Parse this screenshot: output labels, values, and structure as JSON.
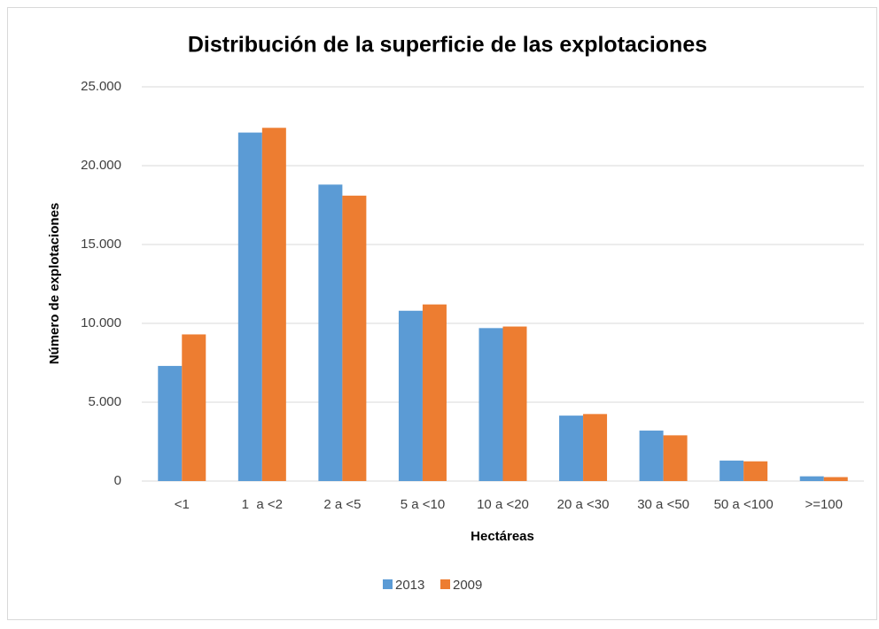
{
  "chart_data": {
    "type": "bar",
    "title": "Distribución de la superficie de las explotaciones",
    "x_label": "Hectáreas",
    "y_label": "Número de explotaciones",
    "categories": [
      "<1",
      "1  a <2",
      "2 a <5",
      "5 a <10",
      "10 a <20",
      "20 a <30",
      "30 a <50",
      "50 a <100",
      ">=100"
    ],
    "series": [
      {
        "name": "2013",
        "color": "#5b9bd5",
        "values": [
          7300,
          22100,
          18800,
          10800,
          9700,
          4150,
          3200,
          1300,
          300
        ]
      },
      {
        "name": "2009",
        "color": "#ed7d31",
        "values": [
          9300,
          22400,
          18100,
          11200,
          9800,
          4250,
          2900,
          1250,
          250
        ]
      }
    ],
    "ylim": [
      0,
      25000
    ],
    "yticks": [
      0,
      {
        "value": 5000,
        "label": "5.000"
      },
      {
        "value": 10000,
        "label": "10.000"
      },
      {
        "value": 15000,
        "label": "15.000"
      },
      {
        "value": 20000,
        "label": "20.000"
      },
      {
        "value": 25000,
        "label": "25.000"
      }
    ],
    "grid": true,
    "legend": "bottom"
  }
}
